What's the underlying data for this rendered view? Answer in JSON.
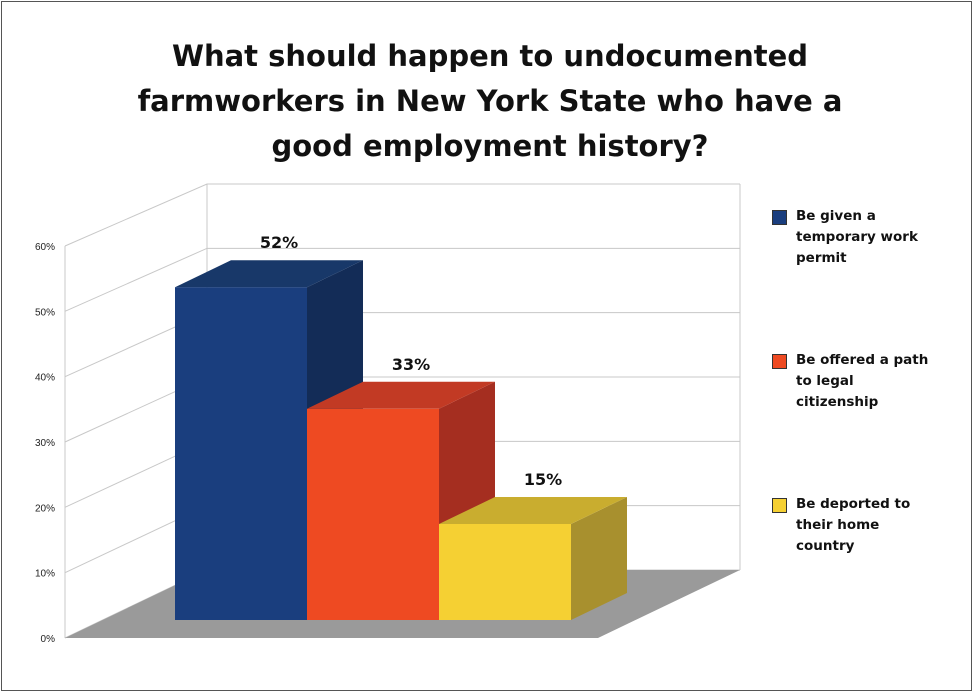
{
  "chart_data": {
    "type": "bar",
    "title": "What should happen to undocumented farmworkers in New York State who have a good employment history?",
    "title_lines": [
      "What should happen to undocumented",
      "farmworkers in New York State who have a",
      "good employment history?"
    ],
    "categories": [
      "Be given a temporary work permit",
      "Be offered a path to legal citizenship",
      "Be deported to their home country"
    ],
    "values": [
      52,
      33,
      15
    ],
    "data_labels": [
      "52%",
      "33%",
      "15%"
    ],
    "y_ticks": [
      "0%",
      "10%",
      "20%",
      "30%",
      "40%",
      "50%",
      "60%"
    ],
    "ylim": [
      0,
      60
    ],
    "grid": true,
    "legend_position": "right",
    "legend": [
      {
        "lines": [
          "Be given a",
          "temporary work",
          "permit"
        ],
        "color": "#1a3e7e"
      },
      {
        "lines": [
          "Be offered a path",
          "to legal",
          "citizenship"
        ],
        "color": "#ee4a22"
      },
      {
        "lines": [
          "Be deported to",
          "their home",
          "country"
        ],
        "color": "#f5d033"
      }
    ],
    "colors": {
      "bar_front": [
        "#1a3e7e",
        "#ee4a22",
        "#f5d033"
      ],
      "bar_side": [
        "#132c57",
        "#a52e20",
        "#a8902e"
      ],
      "bar_top": [
        "#183869",
        "#c23a24",
        "#c9ad2f"
      ],
      "floor": "#9a9a9a",
      "grid": "#c8c8c8"
    }
  }
}
